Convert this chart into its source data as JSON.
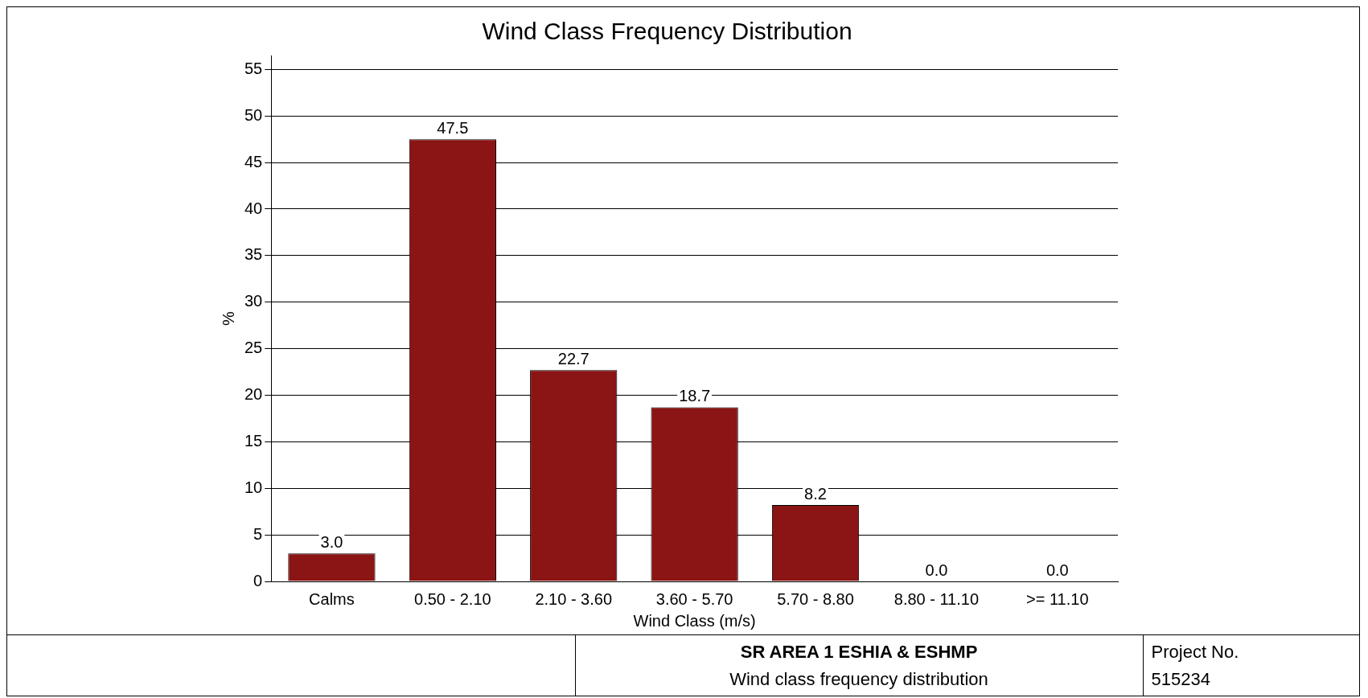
{
  "chart_data": {
    "type": "bar",
    "title": "Wind Class Frequency Distribution",
    "xlabel": "Wind Class (m/s)",
    "ylabel": "%",
    "categories": [
      "Calms",
      "0.50 - 2.10",
      "2.10 - 3.60",
      "3.60 - 5.70",
      "5.70 - 8.80",
      "8.80 - 11.10",
      ">= 11.10"
    ],
    "values": [
      3.0,
      47.5,
      22.7,
      18.7,
      8.2,
      0.0,
      0.0
    ],
    "value_labels": [
      "3.0",
      "47.5",
      "22.7",
      "18.7",
      "8.2",
      "0.0",
      "0.0"
    ],
    "color": "#8b1414",
    "ylim": [
      0,
      56.5
    ],
    "yticks": [
      0,
      5,
      10,
      15,
      20,
      25,
      30,
      35,
      40,
      45,
      50,
      55
    ],
    "grid": "y",
    "legend": false,
    "annotations": [
      "SR AREA 1 ESHIA & ESHMP",
      "Wind class frequency distribution",
      "Project No.",
      "515234"
    ]
  }
}
